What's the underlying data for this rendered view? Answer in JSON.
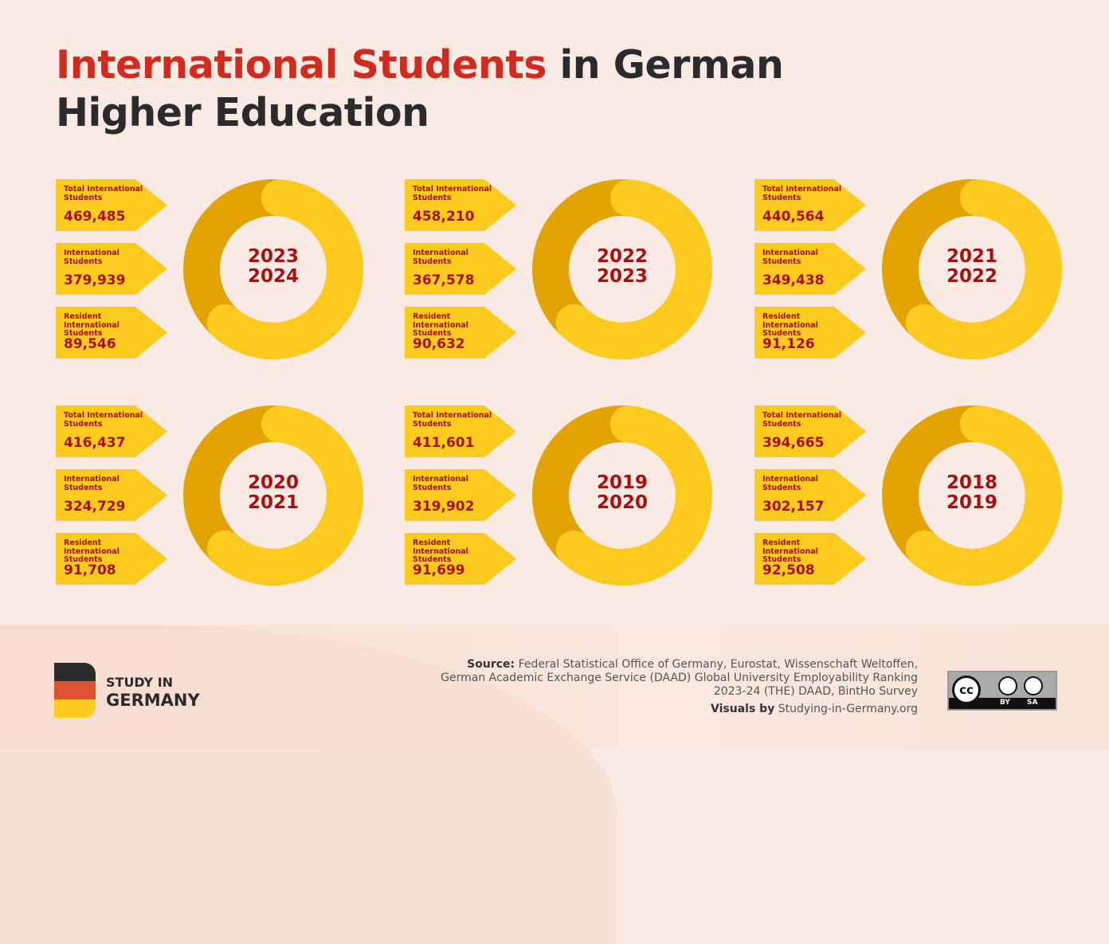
{
  "title": {
    "highlight": "International Students",
    "rest": " in German Higher Education"
  },
  "colors": {
    "ring_light": "#fdca1e",
    "ring_dark": "#e3a300",
    "text_red": "#a80f0f",
    "title_red": "#d32a1f"
  },
  "labels": {
    "total": "Total International Students",
    "intl": "International Students",
    "resident": "Resident International Students"
  },
  "chart_data": {
    "type": "donut",
    "panels": [
      {
        "year1": "2023",
        "year2": "2024",
        "total": "469,485",
        "international": "379,939",
        "resident": "89,546"
      },
      {
        "year1": "2022",
        "year2": "2023",
        "total": "458,210",
        "international": "367,578",
        "resident": "90,632"
      },
      {
        "year1": "2021",
        "year2": "2022",
        "total": "440,564",
        "international": "349,438",
        "resident": "91,126"
      },
      {
        "year1": "2020",
        "year2": "2021",
        "total": "416,437",
        "international": "324,729",
        "resident": "91,708"
      },
      {
        "year1": "2019",
        "year2": "2020",
        "total": "411,601",
        "international": "319,902",
        "resident": "91,699"
      },
      {
        "year1": "2018",
        "year2": "2019",
        "total": "394,665",
        "international": "302,157",
        "resident": "92,508"
      }
    ]
  },
  "footer": {
    "logo_line1": "STUDY IN",
    "logo_line2": "GERMANY",
    "source_label": "Source:",
    "source_text": " Federal Statistical Office of Germany, Eurostat, Wissenschaft Weltoffen, German Academic Exchange Service (DAAD) Global University Employability Ranking 2023-24 (THE) DAAD, BintHo Survey",
    "visuals_label": "Visuals by",
    "visuals_text": " Studying-in-Germany.org",
    "license": "cc",
    "license_by": "BY",
    "license_sa": "SA"
  }
}
